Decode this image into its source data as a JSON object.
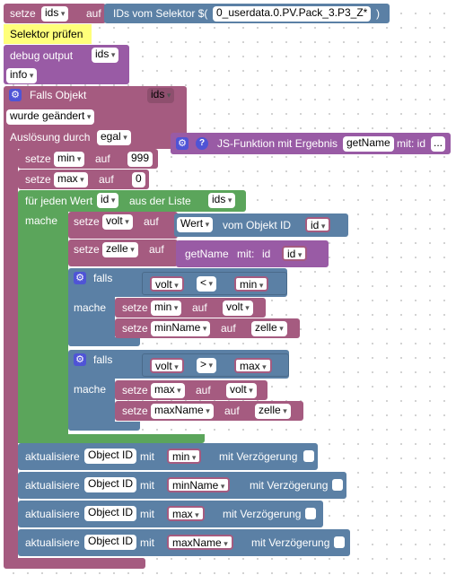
{
  "blocks": {
    "setze_ids": {
      "setze": "setze",
      "var": "ids",
      "auf": "auf",
      "selector_label": "IDs vom Selektor $(",
      "selector_value": "0_userdata.0.PV.Pack_3.P3_Z*",
      "selector_close": ")"
    },
    "comment": {
      "text": "Selektor prüfen"
    },
    "debug": {
      "label": "debug output",
      "var": "ids",
      "level": "info"
    },
    "trigger": {
      "label": "Falls Objekt",
      "var": "ids",
      "mode": "wurde geändert",
      "ausloesung_label": "Auslösung durch",
      "ausloesung_value": "egal"
    },
    "set_min": {
      "setze": "setze",
      "var": "min",
      "auf": "auf",
      "value": "999"
    },
    "set_max": {
      "setze": "setze",
      "var": "max",
      "auf": "auf",
      "value": "0"
    },
    "loop": {
      "label": "für jeden Wert",
      "var": "id",
      "list_label": "aus der Liste",
      "list": "ids",
      "mache": "mache"
    },
    "set_volt": {
      "setze": "setze",
      "var": "volt",
      "auf": "auf",
      "value_label": "Wert",
      "obj_label": "vom Objekt ID",
      "obj_var": "id"
    },
    "set_zelle": {
      "setze": "setze",
      "var": "zelle",
      "auf": "auf",
      "fn": "getName",
      "mit": "mit:",
      "id_label": "id",
      "id_var": "id"
    },
    "if1": {
      "falls": "falls",
      "left": "volt",
      "op": "<",
      "right": "min",
      "mache": "mache"
    },
    "if1_set_min": {
      "setze": "setze",
      "var": "min",
      "auf": "auf",
      "value": "volt"
    },
    "if1_set_minname": {
      "setze": "setze",
      "var": "minName",
      "auf": "auf",
      "value": "zelle"
    },
    "if2": {
      "falls": "falls",
      "left": "volt",
      "op": ">",
      "right": "max",
      "mache": "mache"
    },
    "if2_set_max": {
      "setze": "setze",
      "var": "max",
      "auf": "auf",
      "value": "volt"
    },
    "if2_set_maxname": {
      "setze": "setze",
      "var": "maxName",
      "auf": "auf",
      "value": "zelle"
    },
    "upd1": {
      "label": "aktualisiere",
      "obj": "Object ID",
      "mit": "mit",
      "var": "min",
      "delay": "mit Verzögerung"
    },
    "upd2": {
      "label": "aktualisiere",
      "obj": "Object ID",
      "mit": "mit",
      "var": "minName",
      "delay": "mit Verzögerung"
    },
    "upd3": {
      "label": "aktualisiere",
      "obj": "Object ID",
      "mit": "mit",
      "var": "max",
      "delay": "mit Verzögerung"
    },
    "upd4": {
      "label": "aktualisiere",
      "obj": "Object ID",
      "mit": "mit",
      "var": "maxName",
      "delay": "mit Verzögerung"
    },
    "js_fn": {
      "q": "?",
      "label": "JS-Funktion mit Ergebnis",
      "name": "getName",
      "mit": "mit: id",
      "more": "..."
    }
  },
  "colors": {
    "variable": "#a55b80",
    "function": "#995ba5",
    "loop": "#5ba55b",
    "logic": "#5b80a5",
    "comment": "#ffff7a",
    "mutator": "#4f54d6"
  },
  "icons": {
    "mutator": "gear-icon",
    "help": "question-icon",
    "dropdown": "chevron-down-icon"
  }
}
